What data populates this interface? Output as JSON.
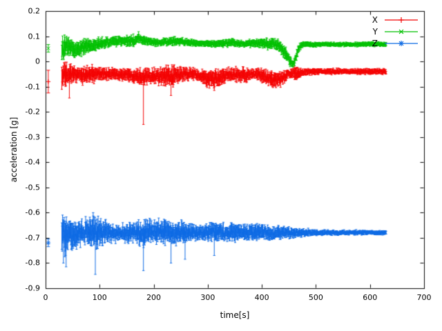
{
  "figure": {
    "background": "#ffffff",
    "border_color": "#000000",
    "text_color": "#000000"
  },
  "chart_data": {
    "type": "line",
    "style": "errorbars",
    "title": "",
    "xlabel": "time[s]",
    "ylabel": "acceleration [g]",
    "xlim": [
      0,
      700
    ],
    "ylim": [
      -0.9,
      0.2
    ],
    "xticks": [
      "0",
      "100",
      "200",
      "300",
      "400",
      "500",
      "600",
      "700"
    ],
    "yticks": [
      "0.2",
      "0.1",
      "0",
      "-0.1",
      "-0.2",
      "-0.3",
      "-0.4",
      "-0.5",
      "-0.6",
      "-0.7",
      "-0.8",
      "-0.9"
    ],
    "grid": false,
    "legend_position": "top-right-inside",
    "series": [
      {
        "name": "X",
        "color": "#f40000",
        "marker": "plus",
        "start_point": {
          "t": 5,
          "y": -0.08,
          "err": 0.045
        },
        "keypoints": [
          [
            30,
            -0.06,
            0.055
          ],
          [
            40,
            -0.055,
            0.045
          ],
          [
            55,
            -0.05,
            0.03
          ],
          [
            75,
            -0.055,
            0.035
          ],
          [
            100,
            -0.05,
            0.028
          ],
          [
            130,
            -0.05,
            0.022
          ],
          [
            160,
            -0.055,
            0.028
          ],
          [
            178,
            -0.06,
            0.035
          ],
          [
            195,
            -0.055,
            0.03
          ],
          [
            215,
            -0.06,
            0.035
          ],
          [
            235,
            -0.06,
            0.04
          ],
          [
            255,
            -0.05,
            0.028
          ],
          [
            275,
            -0.05,
            0.022
          ],
          [
            295,
            -0.065,
            0.03
          ],
          [
            310,
            -0.07,
            0.035
          ],
          [
            325,
            -0.065,
            0.032
          ],
          [
            345,
            -0.05,
            0.025
          ],
          [
            365,
            -0.055,
            0.03
          ],
          [
            385,
            -0.05,
            0.02
          ],
          [
            405,
            -0.06,
            0.03
          ],
          [
            425,
            -0.075,
            0.032
          ],
          [
            438,
            -0.065,
            0.025
          ],
          [
            450,
            -0.05,
            0.02
          ],
          [
            465,
            -0.05,
            0.028
          ],
          [
            475,
            -0.042,
            0.015
          ],
          [
            500,
            -0.04,
            0.012
          ],
          [
            550,
            -0.04,
            0.011
          ],
          [
            600,
            -0.04,
            0.011
          ],
          [
            630,
            -0.04,
            0.011
          ]
        ],
        "spikes": [
          [
            181,
            -0.25
          ],
          [
            44,
            -0.145
          ],
          [
            232,
            -0.135
          ],
          [
            312,
            -0.115
          ]
        ]
      },
      {
        "name": "Y",
        "color": "#00c000",
        "marker": "cross",
        "start_point": {
          "t": 5,
          "y": 0.052,
          "err": 0.015
        },
        "keypoints": [
          [
            30,
            0.05,
            0.045
          ],
          [
            40,
            0.06,
            0.04
          ],
          [
            55,
            0.045,
            0.03
          ],
          [
            70,
            0.055,
            0.03
          ],
          [
            85,
            0.06,
            0.028
          ],
          [
            100,
            0.07,
            0.022
          ],
          [
            115,
            0.075,
            0.02
          ],
          [
            130,
            0.082,
            0.02
          ],
          [
            145,
            0.08,
            0.02
          ],
          [
            160,
            0.082,
            0.022
          ],
          [
            172,
            0.09,
            0.02
          ],
          [
            185,
            0.08,
            0.016
          ],
          [
            205,
            0.075,
            0.015
          ],
          [
            225,
            0.078,
            0.015
          ],
          [
            245,
            0.08,
            0.015
          ],
          [
            265,
            0.075,
            0.013
          ],
          [
            285,
            0.072,
            0.013
          ],
          [
            305,
            0.07,
            0.013
          ],
          [
            325,
            0.072,
            0.014
          ],
          [
            345,
            0.075,
            0.015
          ],
          [
            365,
            0.07,
            0.012
          ],
          [
            385,
            0.072,
            0.015
          ],
          [
            400,
            0.075,
            0.02
          ],
          [
            415,
            0.07,
            0.02
          ],
          [
            430,
            0.065,
            0.022
          ],
          [
            442,
            0.04,
            0.025
          ],
          [
            452,
            0.0,
            0.022
          ],
          [
            458,
            -0.012,
            0.015
          ],
          [
            464,
            0.02,
            0.02
          ],
          [
            470,
            0.06,
            0.014
          ],
          [
            480,
            0.068,
            0.01
          ],
          [
            520,
            0.068,
            0.009
          ],
          [
            560,
            0.067,
            0.009
          ],
          [
            600,
            0.068,
            0.009
          ],
          [
            630,
            0.068,
            0.009
          ]
        ],
        "spikes": [
          [
            172,
            0.118
          ],
          [
            35,
            0.105
          ]
        ]
      },
      {
        "name": "Z",
        "color": "#0d6ae4",
        "marker": "star",
        "start_point": {
          "t": 5,
          "y": -0.72,
          "err": 0.015
        },
        "keypoints": [
          [
            30,
            -0.69,
            0.065
          ],
          [
            40,
            -0.695,
            0.07
          ],
          [
            50,
            -0.69,
            0.06
          ],
          [
            60,
            -0.685,
            0.05
          ],
          [
            72,
            -0.68,
            0.05
          ],
          [
            85,
            -0.675,
            0.06
          ],
          [
            95,
            -0.685,
            0.06
          ],
          [
            108,
            -0.68,
            0.045
          ],
          [
            125,
            -0.682,
            0.035
          ],
          [
            140,
            -0.68,
            0.03
          ],
          [
            155,
            -0.68,
            0.038
          ],
          [
            170,
            -0.678,
            0.042
          ],
          [
            182,
            -0.685,
            0.05
          ],
          [
            195,
            -0.675,
            0.045
          ],
          [
            210,
            -0.675,
            0.045
          ],
          [
            228,
            -0.678,
            0.05
          ],
          [
            245,
            -0.68,
            0.045
          ],
          [
            260,
            -0.678,
            0.04
          ],
          [
            278,
            -0.68,
            0.032
          ],
          [
            295,
            -0.678,
            0.03
          ],
          [
            312,
            -0.675,
            0.04
          ],
          [
            330,
            -0.68,
            0.032
          ],
          [
            348,
            -0.678,
            0.035
          ],
          [
            365,
            -0.676,
            0.03
          ],
          [
            382,
            -0.68,
            0.035
          ],
          [
            400,
            -0.676,
            0.03
          ],
          [
            418,
            -0.678,
            0.028
          ],
          [
            435,
            -0.68,
            0.024
          ],
          [
            455,
            -0.68,
            0.02
          ],
          [
            475,
            -0.68,
            0.016
          ],
          [
            500,
            -0.68,
            0.012
          ],
          [
            530,
            -0.68,
            0.01
          ],
          [
            570,
            -0.679,
            0.009
          ],
          [
            600,
            -0.679,
            0.009
          ],
          [
            630,
            -0.679,
            0.009
          ]
        ],
        "spikes": [
          [
            33,
            -0.8
          ],
          [
            38,
            -0.815
          ],
          [
            92,
            -0.845
          ],
          [
            88,
            -0.6
          ],
          [
            181,
            -0.83
          ],
          [
            232,
            -0.8
          ],
          [
            258,
            -0.785
          ],
          [
            312,
            -0.77
          ]
        ]
      }
    ]
  }
}
